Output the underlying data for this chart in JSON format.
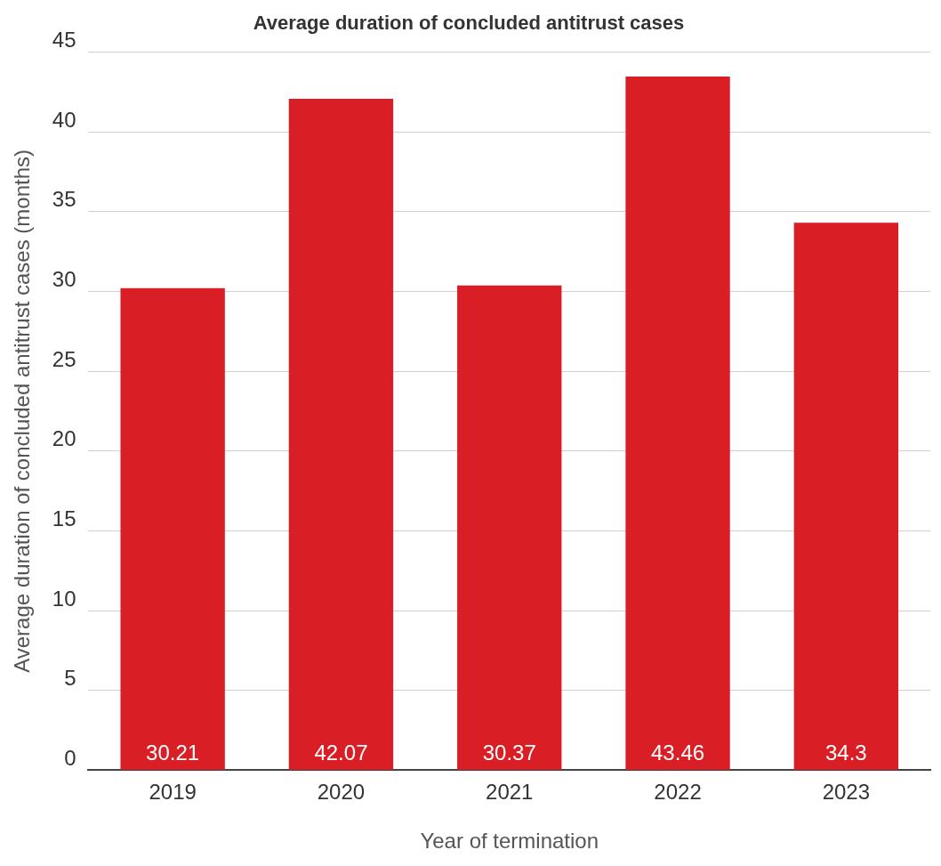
{
  "chart_data": {
    "type": "bar",
    "title": "Average duration of concluded antitrust cases",
    "xlabel": "Year of termination",
    "ylabel": "Average duration of concluded antitrust cases (months)",
    "categories": [
      "2019",
      "2020",
      "2021",
      "2022",
      "2023"
    ],
    "values": [
      30.21,
      42.07,
      30.37,
      43.46,
      34.3
    ],
    "color": "#d91e25",
    "ylim": [
      0,
      45
    ],
    "yticks": [
      0,
      5,
      10,
      15,
      20,
      25,
      30,
      35,
      40,
      45
    ],
    "grid": "y",
    "legend": false,
    "data_labels": true
  }
}
